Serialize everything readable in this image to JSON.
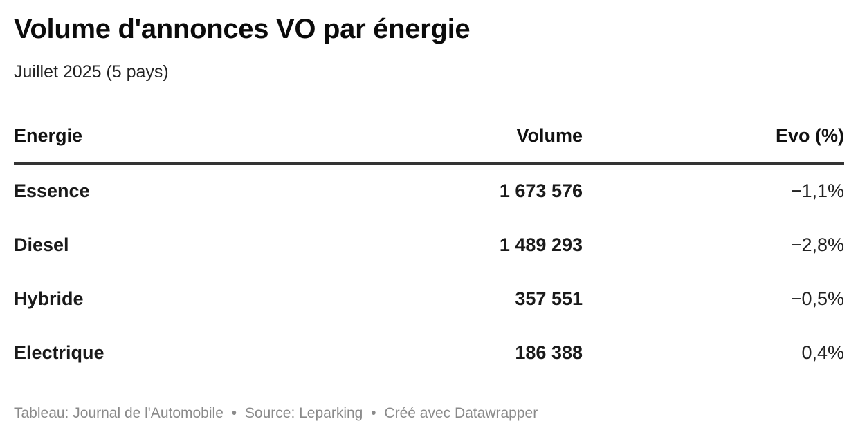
{
  "title": "Volume d'annonces VO par énergie",
  "subtitle": "Juillet 2025 (5 pays)",
  "chart_data": {
    "type": "table",
    "columns": [
      "Energie",
      "Volume",
      "Evo (%)"
    ],
    "rows": [
      {
        "energie": "Essence",
        "volume": "1 673 576",
        "evo": "−1,1%"
      },
      {
        "energie": "Diesel",
        "volume": "1 489 293",
        "evo": "−2,8%"
      },
      {
        "energie": "Hybride",
        "volume": "357 551",
        "evo": "−0,5%"
      },
      {
        "energie": "Electrique",
        "volume": "186 388",
        "evo": "0,4%"
      }
    ]
  },
  "footer": {
    "credit": "Tableau: Journal de l'Automobile",
    "source": "Source: Leparking",
    "tool": "Créé avec Datawrapper",
    "separator": "•"
  }
}
